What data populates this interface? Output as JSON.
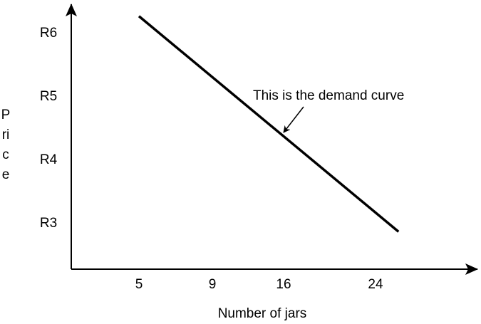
{
  "chart_data": {
    "type": "line",
    "title": "",
    "xlabel": "Number of jars",
    "ylabel": "Price",
    "x_ticks": [
      "5",
      "9",
      "16",
      "24"
    ],
    "y_ticks": [
      "R3",
      "R4",
      "R5",
      "R6"
    ],
    "y_tick_values": [
      3,
      4,
      5,
      6
    ],
    "x_tick_values": [
      5,
      9,
      16,
      24
    ],
    "grid": false,
    "series": [
      {
        "points": [
          {
            "x": 5,
            "y": 6.25
          },
          {
            "x": 26,
            "y": 2.85
          }
        ],
        "color": "#000000"
      }
    ],
    "annotations": [
      {
        "text": "This is the demand curve"
      }
    ]
  }
}
